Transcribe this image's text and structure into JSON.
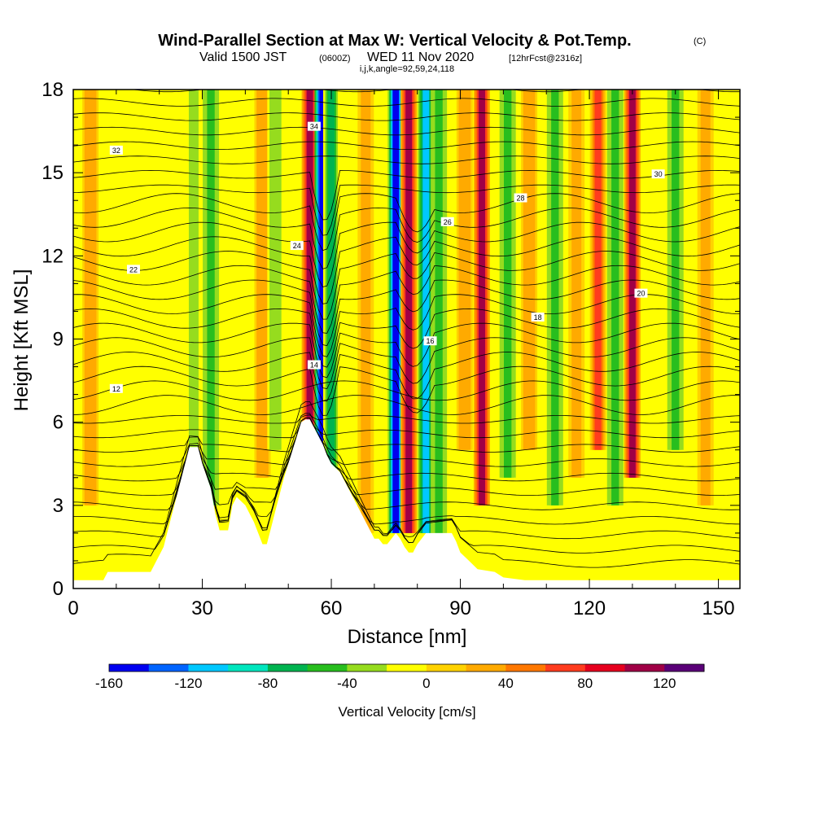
{
  "title": {
    "main": "Wind-Parallel Section at Max W: Vertical Velocity & Pot.Temp.",
    "copyright": "(C)",
    "line2_a": "Valid 1500 JST",
    "line2_b": "(0600Z)",
    "line2_c": "WED 11 Nov 2020",
    "line2_d": "[12hrFcst@2316z]",
    "line3": "i,j,k,angle=92,59,24,118"
  },
  "chart_data": {
    "type": "heatmap",
    "xlabel": "Distance [nm]",
    "ylabel": "Height [Kft MSL]",
    "xlim": [
      0,
      155
    ],
    "ylim": [
      0,
      18
    ],
    "x_ticks": [
      0,
      30,
      60,
      90,
      120,
      150
    ],
    "y_ticks": [
      0,
      3,
      6,
      9,
      12,
      15,
      18
    ],
    "colorbar": {
      "title": "Vertical Velocity [cm/s]",
      "range": [
        -160,
        140
      ],
      "step": 20,
      "tick_values": [
        -160,
        -120,
        -80,
        -40,
        0,
        40,
        80,
        120
      ],
      "colors": [
        "#0000f0",
        "#0064ff",
        "#00c8ff",
        "#00e6be",
        "#00b450",
        "#28be1e",
        "#96dc1e",
        "#ffff00",
        "#ffd200",
        "#ffaa00",
        "#ff7800",
        "#ff3c1e",
        "#e6001e",
        "#a00046",
        "#5a0078"
      ]
    },
    "terrain_kft": [
      [
        0,
        0.3
      ],
      [
        7,
        0.3
      ],
      [
        8,
        0.6
      ],
      [
        18,
        0.6
      ],
      [
        19,
        0.9
      ],
      [
        21,
        1.5
      ],
      [
        22,
        2.1
      ],
      [
        23,
        2.7
      ],
      [
        24,
        3.3
      ],
      [
        25,
        3.9
      ],
      [
        26,
        4.5
      ],
      [
        27,
        5.1
      ],
      [
        29,
        5.1
      ],
      [
        30,
        4.5
      ],
      [
        32,
        3.6
      ],
      [
        33,
        2.7
      ],
      [
        34,
        2.1
      ],
      [
        36,
        2.1
      ],
      [
        37,
        3.0
      ],
      [
        38,
        3.3
      ],
      [
        40,
        3.0
      ],
      [
        41,
        2.7
      ],
      [
        42,
        2.4
      ],
      [
        43,
        2.0
      ],
      [
        44,
        1.6
      ],
      [
        45,
        1.6
      ],
      [
        46,
        2.2
      ],
      [
        47,
        2.8
      ],
      [
        48,
        3.4
      ],
      [
        49,
        4.0
      ],
      [
        50,
        4.5
      ],
      [
        51,
        5.0
      ],
      [
        52,
        5.5
      ],
      [
        53,
        6.0
      ],
      [
        54,
        6.1
      ],
      [
        55,
        6.1
      ],
      [
        56,
        5.8
      ],
      [
        57,
        5.5
      ],
      [
        58,
        5.2
      ],
      [
        59,
        4.8
      ],
      [
        60,
        4.5
      ],
      [
        62,
        4.2
      ],
      [
        63,
        3.9
      ],
      [
        64,
        3.6
      ],
      [
        65,
        3.3
      ],
      [
        66,
        3.0
      ],
      [
        67,
        2.7
      ],
      [
        68,
        2.4
      ],
      [
        69,
        2.1
      ],
      [
        70,
        1.8
      ],
      [
        71,
        1.8
      ],
      [
        72,
        1.6
      ],
      [
        73,
        1.6
      ],
      [
        74,
        1.8
      ],
      [
        75,
        2.0
      ],
      [
        76,
        1.8
      ],
      [
        77,
        1.5
      ],
      [
        78,
        1.3
      ],
      [
        79,
        1.3
      ],
      [
        80,
        1.6
      ],
      [
        81,
        1.8
      ],
      [
        82,
        2.0
      ],
      [
        88,
        2.0
      ],
      [
        89,
        1.7
      ],
      [
        90,
        1.3
      ],
      [
        92,
        1.0
      ],
      [
        94,
        0.7
      ],
      [
        98,
        0.6
      ],
      [
        100,
        0.4
      ],
      [
        105,
        0.3
      ],
      [
        155,
        0.3
      ]
    ],
    "velocity_columns": [
      {
        "x": 4,
        "w": 35
      },
      {
        "x": 12,
        "w": 10
      },
      {
        "x": 28,
        "w": -25
      },
      {
        "x": 32,
        "w": -40
      },
      {
        "x": 44,
        "w": 30
      },
      {
        "x": 47,
        "w": -35
      },
      {
        "x": 55,
        "w": 100
      },
      {
        "x": 58,
        "w": -160
      },
      {
        "x": 60,
        "w": -60
      },
      {
        "x": 68,
        "w": 20
      },
      {
        "x": 75,
        "w": -140
      },
      {
        "x": 78,
        "w": 100
      },
      {
        "x": 82,
        "w": -100
      },
      {
        "x": 85,
        "w": -50
      },
      {
        "x": 91,
        "w": 30
      },
      {
        "x": 95,
        "w": 100
      },
      {
        "x": 101,
        "w": -40
      },
      {
        "x": 106,
        "w": 35
      },
      {
        "x": 112,
        "w": -40
      },
      {
        "x": 117,
        "w": 20
      },
      {
        "x": 122,
        "w": 60
      },
      {
        "x": 126,
        "w": -40
      },
      {
        "x": 130,
        "w": 100
      },
      {
        "x": 140,
        "w": -40
      },
      {
        "x": 147,
        "w": 25
      }
    ],
    "contour_labels": [
      "12",
      "14",
      "16",
      "18",
      "20",
      "22",
      "24",
      "26",
      "28",
      "30",
      "32",
      "34"
    ]
  }
}
